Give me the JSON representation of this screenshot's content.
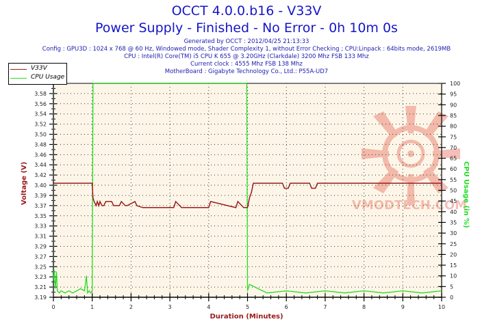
{
  "header": {
    "title": "OCCT 4.0.0.b16 - V33V",
    "subtitle": "Power Supply - Finished - No Error - 0h 10m 0s",
    "info_lines": [
      "Generated by OCCT : 2012/04/25 21:13:33",
      "Config : GPU3D : 1024 x 768 @ 60 Hz, Windowed mode, Shader Complexity 1, without Error Checking ; CPU:Linpack : 64bits mode, 2619MB",
      "CPU : Intel(R) Core(TM) i5 CPU K 655 @ 3.20GHz (Clarkdale) 3200 Mhz FSB 133 Mhz",
      "Current clock : 4555 Mhz FSB 138 Mhz",
      "MotherBoard : Gigabyte Technology Co., Ltd.: P55A-UD7"
    ]
  },
  "legend": [
    {
      "label": "V33V",
      "color": "#9a1a1a"
    },
    {
      "label": "CPU Usage",
      "color": "#22dd22"
    }
  ],
  "watermark": "VMODTECH.COM",
  "colors": {
    "plot_bg": "#fdf6e8",
    "voltage": "#9a1a1a",
    "cpu": "#22dd22",
    "title": "#1515c8"
  },
  "chart_data": {
    "type": "line",
    "title": "OCCT 4.0.0.b16 - V33V",
    "subtitle": "Power Supply - Finished - No Error - 0h 10m 0s",
    "xlabel": "Duration (Minutes)",
    "ylabel": "Voltage (V)",
    "y2label": "CPU Usage (in %)",
    "xlim": [
      0,
      10
    ],
    "ylim": [
      3.19,
      3.6
    ],
    "y2lim": [
      0,
      100
    ],
    "grid": true,
    "legend_position": "top-left",
    "x_ticks": [
      "0",
      "1",
      "2",
      "3",
      "4",
      "5",
      "6",
      "7",
      "8",
      "9",
      "10"
    ],
    "y_ticks": [
      "3.19",
      "3.21",
      "3.23",
      "3.25",
      "3.27",
      "3.29",
      "3.31",
      "3.33",
      "3.35",
      "3.37",
      "3.39",
      "3.40",
      "3.42",
      "3.44",
      "3.46",
      "3.48",
      "3.50",
      "3.52",
      "3.54",
      "3.56",
      "3.58"
    ],
    "y2_ticks": [
      "0",
      "5",
      "10",
      "15",
      "20",
      "25",
      "30",
      "35",
      "40",
      "45",
      "50",
      "55",
      "60",
      "65",
      "70",
      "75",
      "80",
      "85",
      "90",
      "95",
      "100"
    ],
    "series": [
      {
        "name": "V33V",
        "axis": "left",
        "x": [
          0,
          1.0,
          1.02,
          1.05,
          1.1,
          1.13,
          1.17,
          1.2,
          1.25,
          1.3,
          1.35,
          1.5,
          1.55,
          1.7,
          1.75,
          1.85,
          1.9,
          2.1,
          2.15,
          2.3,
          3.1,
          3.15,
          3.3,
          4.0,
          4.05,
          4.7,
          4.75,
          4.9,
          5.0,
          5.05,
          5.1,
          5.15,
          5.2,
          5.9,
          5.95,
          6.05,
          6.1,
          6.6,
          6.65,
          6.75,
          6.8,
          10
        ],
        "values": [
          3.404,
          3.404,
          3.385,
          3.378,
          3.37,
          3.378,
          3.37,
          3.378,
          3.37,
          3.37,
          3.378,
          3.378,
          3.37,
          3.37,
          3.378,
          3.37,
          3.37,
          3.378,
          3.37,
          3.366,
          3.366,
          3.378,
          3.366,
          3.366,
          3.378,
          3.366,
          3.378,
          3.366,
          3.366,
          3.385,
          3.393,
          3.404,
          3.404,
          3.404,
          3.397,
          3.397,
          3.404,
          3.404,
          3.397,
          3.397,
          3.404,
          3.404
        ]
      },
      {
        "name": "CPU Usage",
        "axis": "right",
        "x": [
          0,
          0.02,
          0.05,
          0.08,
          0.1,
          0.15,
          0.2,
          0.3,
          0.4,
          0.5,
          0.6,
          0.7,
          0.8,
          0.85,
          0.88,
          0.92,
          0.96,
          1.0,
          1.02,
          4.98,
          5.0,
          5.05,
          5.5,
          6.0,
          6.5,
          7.0,
          7.5,
          8.0,
          8.5,
          9.0,
          9.5,
          10
        ],
        "values": [
          8,
          13,
          4,
          12,
          3,
          2,
          3,
          2,
          3,
          2,
          3,
          4,
          3,
          10,
          2,
          3,
          2,
          3,
          100,
          100,
          3,
          6,
          2,
          3,
          2,
          3,
          2,
          3,
          2,
          3,
          2,
          3
        ]
      }
    ]
  }
}
